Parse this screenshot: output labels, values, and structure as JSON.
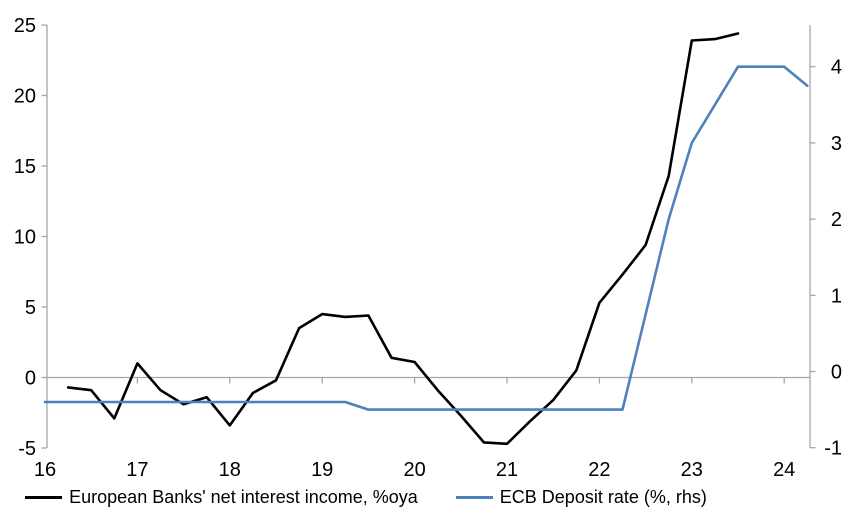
{
  "chart_data": {
    "type": "line",
    "title": "",
    "xlabel": "",
    "ylabel_left": "",
    "ylabel_right": "",
    "grid": "zero-line-only",
    "legend_position": "bottom-center",
    "x_axis": {
      "tick_labels": [
        "16",
        "17",
        "18",
        "19",
        "20",
        "21",
        "22",
        "23",
        "24"
      ],
      "tick_values": [
        16,
        17,
        18,
        19,
        20,
        21,
        22,
        23,
        24
      ],
      "range": [
        16,
        24.28
      ]
    },
    "left_axis": {
      "tick_labels": [
        "25",
        "20",
        "15",
        "10",
        "5",
        "0",
        "-5"
      ],
      "tick_values": [
        25,
        20,
        15,
        10,
        5,
        0,
        -5
      ],
      "range": [
        -5,
        25
      ]
    },
    "right_axis": {
      "tick_labels": [
        "4",
        "3",
        "2",
        "1",
        "0",
        "-1"
      ],
      "tick_values": [
        4,
        3,
        2,
        1,
        0,
        -1
      ],
      "range": [
        -1,
        4.45
      ]
    },
    "series": [
      {
        "name": "European Banks' net interest income, %oya",
        "axis": "left",
        "color": "#000000",
        "x": [
          16.25,
          16.5,
          16.75,
          17,
          17.25,
          17.5,
          17.75,
          18,
          18.25,
          18.5,
          18.75,
          19,
          19.25,
          19.5,
          19.75,
          20,
          20.25,
          20.5,
          20.75,
          21,
          21.25,
          21.5,
          21.75,
          22,
          22.25,
          22.5,
          22.75,
          23,
          23.25,
          23.5
        ],
        "values": [
          -0.7,
          -0.9,
          -2.9,
          1.0,
          -0.9,
          -1.9,
          -1.4,
          -3.4,
          -1.1,
          -0.2,
          3.5,
          4.5,
          4.3,
          4.4,
          1.4,
          1.1,
          -0.9,
          -2.7,
          -4.6,
          -4.7,
          -3.1,
          -1.6,
          0.5,
          5.3,
          7.3,
          9.4,
          14.3,
          23.9,
          24.0,
          24.4
        ]
      },
      {
        "name": "ECB Deposit rate (%, rhs)",
        "axis": "right",
        "color": "#4f81bd",
        "x": [
          16,
          16.25,
          16.5,
          16.75,
          17,
          17.25,
          17.5,
          17.75,
          18,
          18.25,
          18.5,
          18.75,
          19,
          19.25,
          19.5,
          19.75,
          20,
          20.25,
          20.5,
          20.75,
          21,
          21.25,
          21.5,
          21.75,
          22,
          22.25,
          22.5,
          22.75,
          23,
          23.25,
          23.5,
          23.75,
          24,
          24.25
        ],
        "values": [
          -0.4,
          -0.4,
          -0.4,
          -0.4,
          -0.4,
          -0.4,
          -0.4,
          -0.4,
          -0.4,
          -0.4,
          -0.4,
          -0.4,
          -0.4,
          -0.4,
          -0.5,
          -0.5,
          -0.5,
          -0.5,
          -0.5,
          -0.5,
          -0.5,
          -0.5,
          -0.5,
          -0.5,
          -0.5,
          -0.5,
          0.75,
          2.0,
          3.0,
          3.5,
          4.0,
          4.0,
          4.0,
          3.75
        ]
      }
    ],
    "colors": {
      "axis_gray": "#a6a6a6",
      "background": "#ffffff"
    }
  }
}
